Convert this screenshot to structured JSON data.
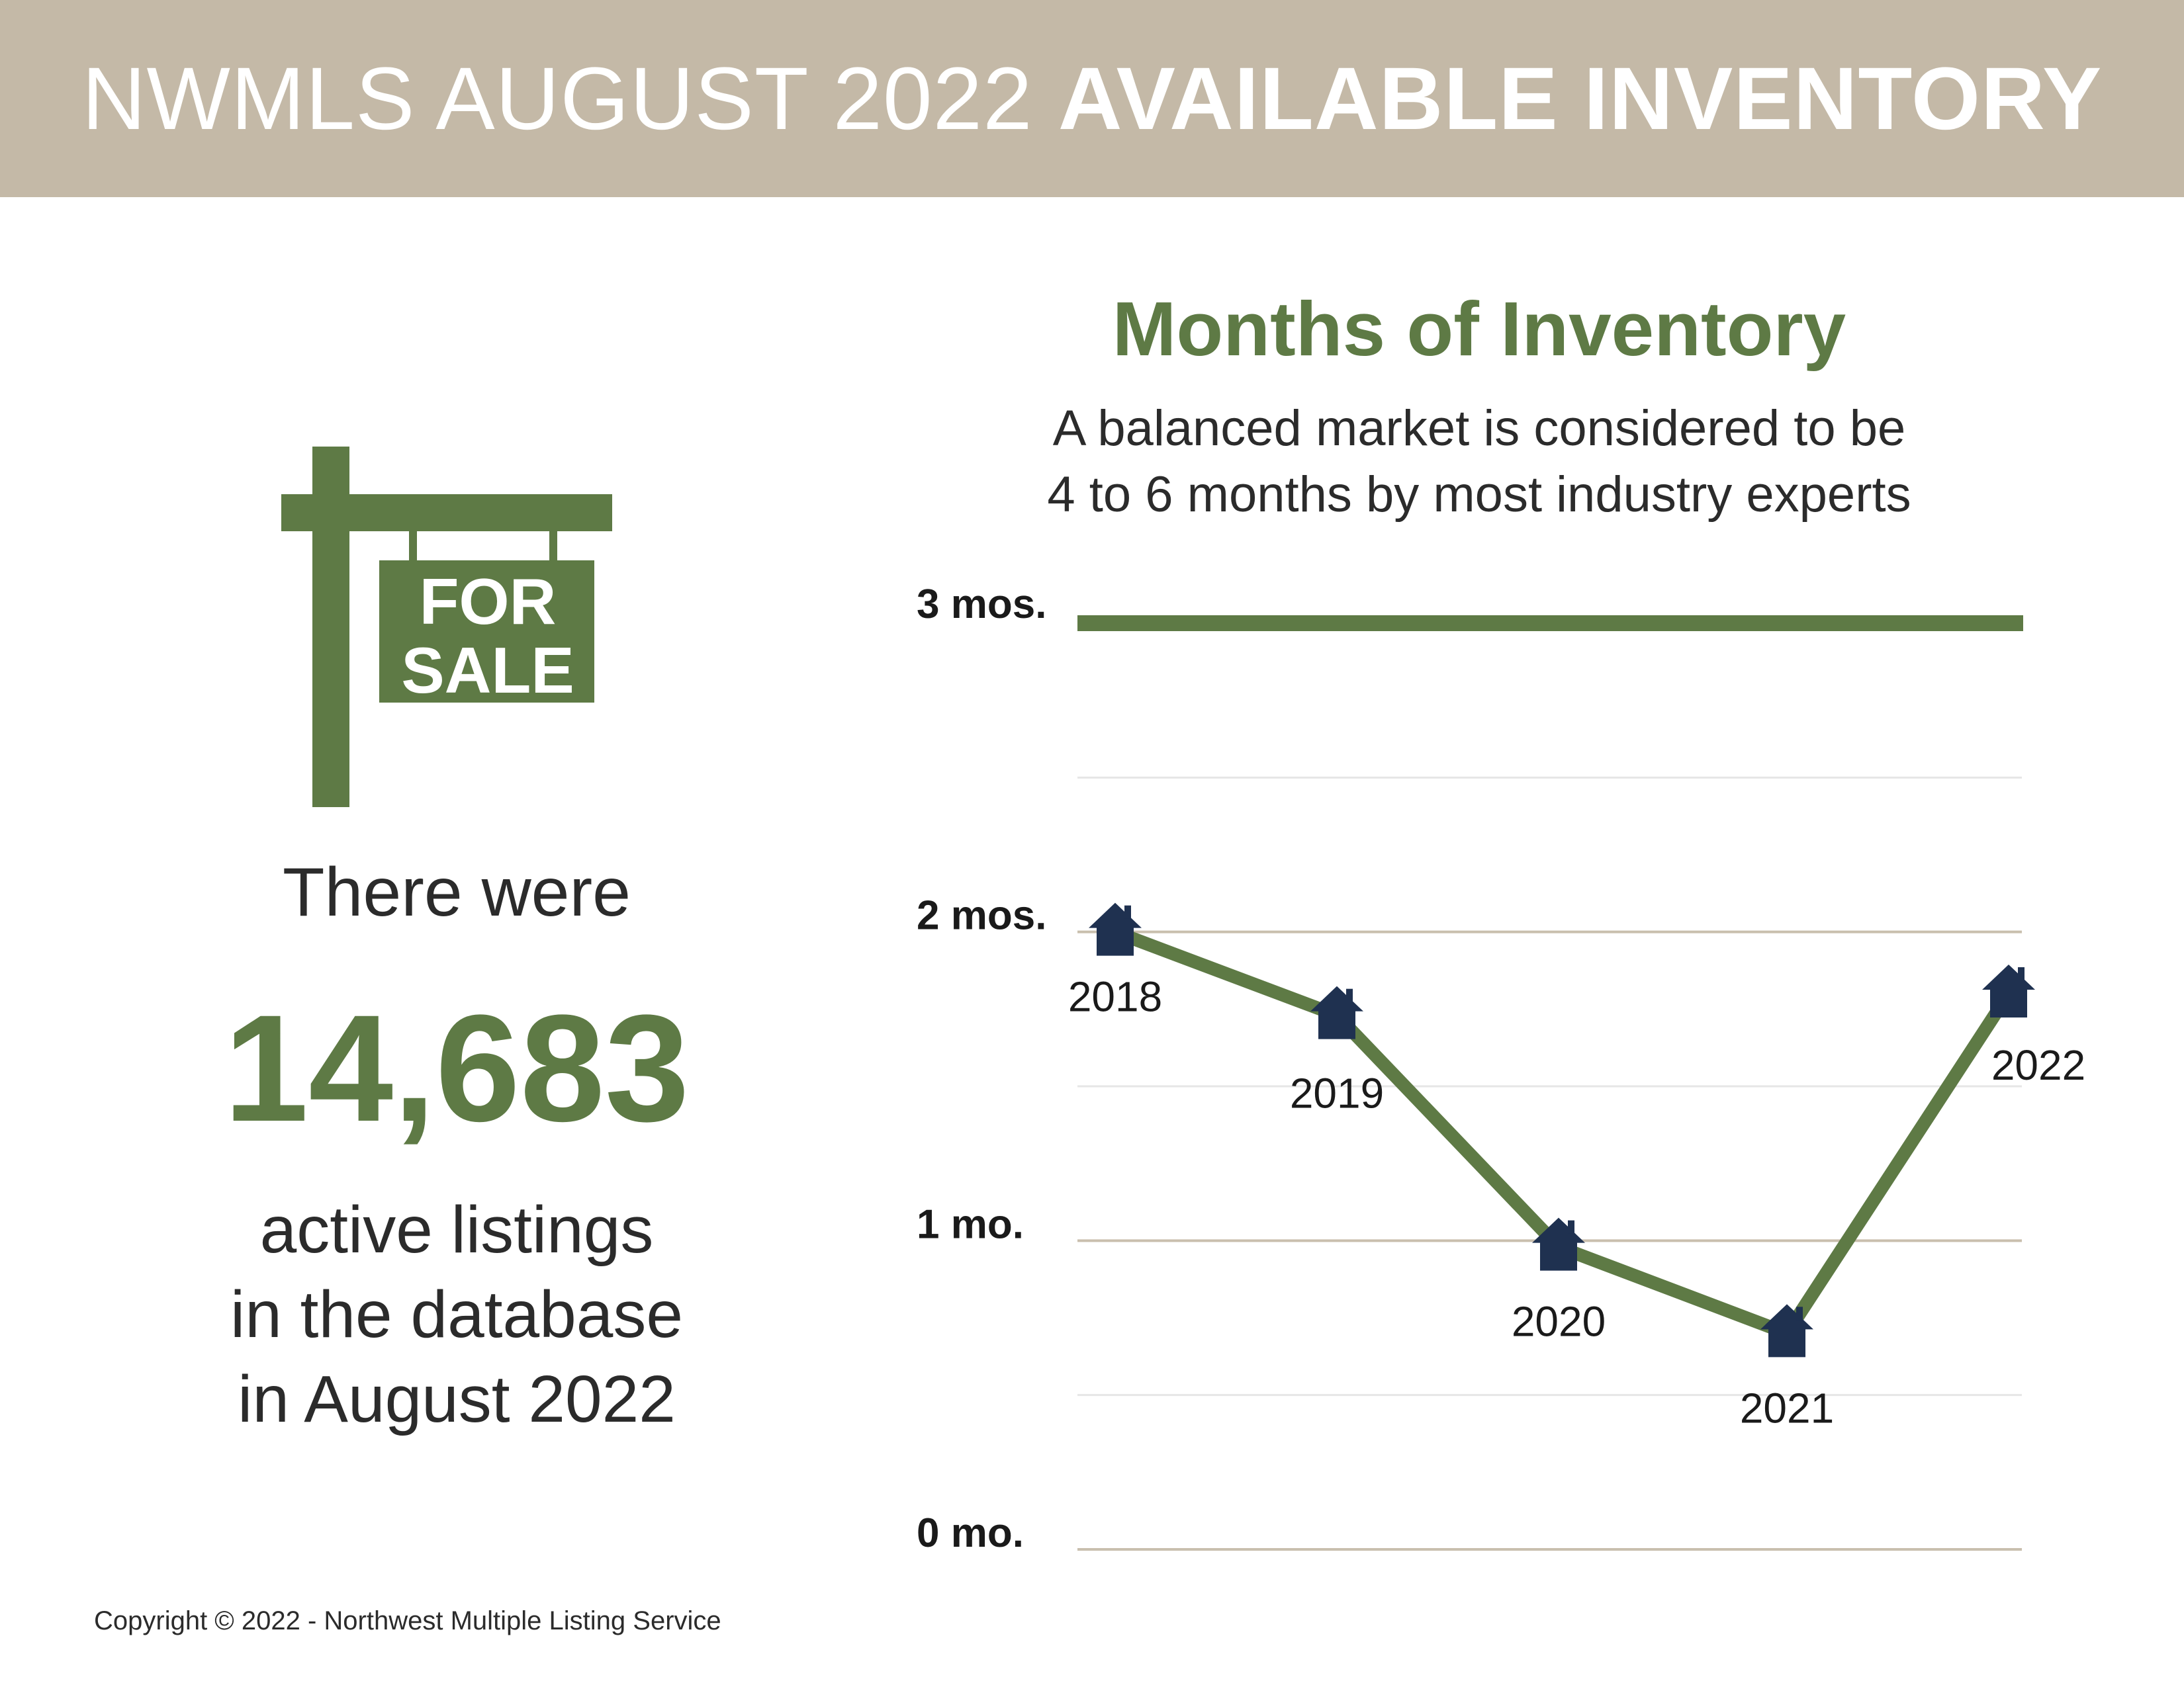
{
  "header": {
    "title_light": "NWMLS AUGUST 2022",
    "title_bold": "AVAILABLE INVENTORY"
  },
  "sign": {
    "icon": "for-sale-sign-icon",
    "line1": "FOR",
    "line2": "SALE"
  },
  "summary": {
    "lead": "There were",
    "count": "14,683",
    "desc_line1": "active listings",
    "desc_line2": "in the database",
    "desc_line3": "in August 2022"
  },
  "footer": {
    "copyright": "Copyright © 2022 - Northwest Multiple Listing Service"
  },
  "chart_data": {
    "type": "line",
    "title": "Months of Inventory",
    "subtitle_line1": "A balanced market is considered to be",
    "subtitle_line2": "4 to 6 months by most industry experts",
    "y_ticks": [
      {
        "value": 0,
        "label": "0 mo."
      },
      {
        "value": 1,
        "label": "1 mo."
      },
      {
        "value": 2,
        "label": "2 mos."
      },
      {
        "value": 3,
        "label": "3 mos."
      }
    ],
    "ylim": [
      0,
      3
    ],
    "series": [
      {
        "points": [
          {
            "x": "2018",
            "y": 2.0
          },
          {
            "x": "2019",
            "y": 1.73
          },
          {
            "x": "2020",
            "y": 0.98
          },
          {
            "x": "2021",
            "y": 0.7
          },
          {
            "x": "2022",
            "y": 1.8
          }
        ]
      }
    ],
    "reference_line": {
      "value": 3
    },
    "marker_icon": "house-icon",
    "colors": {
      "line": "#5e7a45",
      "marker": "#1f3150",
      "grid_major": "#c9bfae",
      "grid_minor": "#e6e6e6",
      "header_bg": "#c4b9a7"
    }
  }
}
